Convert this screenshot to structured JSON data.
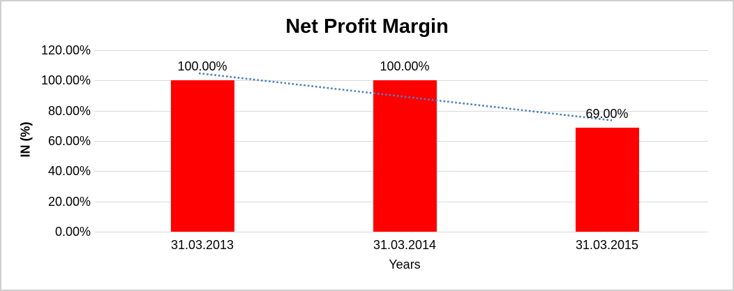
{
  "chart_data": {
    "type": "bar",
    "title": "Net Profit Margin",
    "xlabel": "Years",
    "ylabel": "IN (%)",
    "categories": [
      "31.03.2013",
      "31.03.2014",
      "31.03.2015"
    ],
    "values": [
      100,
      100,
      69
    ],
    "data_labels": [
      "100.00%",
      "100.00%",
      "69.00%"
    ],
    "ylim": [
      0,
      120
    ],
    "y_ticks": [
      {
        "value": 120,
        "label": "120.00%"
      },
      {
        "value": 100,
        "label": "100.00%"
      },
      {
        "value": 80,
        "label": "80.00%"
      },
      {
        "value": 60,
        "label": "60.00%"
      },
      {
        "value": 40,
        "label": "40.00%"
      },
      {
        "value": 20,
        "label": "20.00%"
      },
      {
        "value": 0,
        "label": "0.00%"
      }
    ],
    "grid": true,
    "legend": "none",
    "bar_color": "#ff0000",
    "grid_color": "#d9d9d9",
    "background_color": "#ffffff",
    "frame_border_color": "#cfcfcf",
    "trendline": {
      "type": "linear",
      "style": "dotted",
      "color": "#4a80c2",
      "endpoint_values": [
        104.5,
        74.0
      ],
      "x_extend": [
        -5,
        7
      ]
    }
  }
}
